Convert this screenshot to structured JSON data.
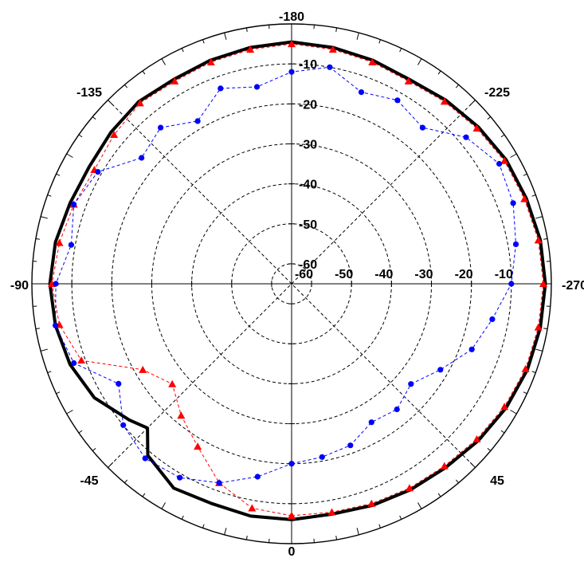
{
  "colors": {
    "series1": "#000000",
    "series2": "#ff0000",
    "series3": "#0000ff",
    "grid": "#000000"
  },
  "chart_data": {
    "type": "line",
    "polar": true,
    "grid": true,
    "angle_ticks": [
      "-180",
      "-225",
      "-270",
      "45",
      "0",
      "-45",
      "-90",
      "-135"
    ],
    "r_ticks": [
      "-60",
      "-50",
      "-40",
      "-30",
      "-20",
      "-10"
    ],
    "rlim": [
      -65,
      0
    ],
    "series": [
      {
        "style": "solid-thick",
        "color": "#000000",
        "points": [
          {
            "angle": 0,
            "r": -6
          },
          {
            "angle": 10,
            "r": -6.5
          },
          {
            "angle": 20,
            "r": -6
          },
          {
            "angle": 30,
            "r": -5.5
          },
          {
            "angle": 40,
            "r": -5
          },
          {
            "angle": 50,
            "r": -4
          },
          {
            "angle": 60,
            "r": -3
          },
          {
            "angle": 70,
            "r": -2.2
          },
          {
            "angle": 80,
            "r": -1.8
          },
          {
            "angle": 90,
            "r": -1.5
          },
          {
            "angle": 100,
            "r": -1.8
          },
          {
            "angle": 110,
            "r": -2.5
          },
          {
            "angle": 120,
            "r": -3
          },
          {
            "angle": 130,
            "r": -4
          },
          {
            "angle": 140,
            "r": -5
          },
          {
            "angle": 150,
            "r": -6
          },
          {
            "angle": 160,
            "r": -5.5
          },
          {
            "angle": 170,
            "r": -5
          },
          {
            "angle": 180,
            "r": -4.5
          },
          {
            "angle": 190,
            "r": -5
          },
          {
            "angle": 200,
            "r": -5.5
          },
          {
            "angle": 210,
            "r": -6
          },
          {
            "angle": 220,
            "r": -5.5
          },
          {
            "angle": 230,
            "r": -6
          },
          {
            "angle": 240,
            "r": -6.5
          },
          {
            "angle": 250,
            "r": -6
          },
          {
            "angle": 260,
            "r": -5
          },
          {
            "angle": 270,
            "r": -4.5
          },
          {
            "angle": 280,
            "r": -5
          },
          {
            "angle": 290,
            "r": -6
          },
          {
            "angle": 300,
            "r": -8
          },
          {
            "angle": 310,
            "r": -12
          },
          {
            "angle": 315,
            "r": -14
          },
          {
            "angle": 320,
            "r": -9
          },
          {
            "angle": 330,
            "r": -6
          },
          {
            "angle": 340,
            "r": -6.5
          },
          {
            "angle": 350,
            "r": -6
          },
          {
            "angle": 360,
            "r": -6
          }
        ]
      },
      {
        "style": "triangle-markers-dashed",
        "color": "#ff0000",
        "points": [
          {
            "angle": 0,
            "r": -7
          },
          {
            "angle": 10,
            "r": -7
          },
          {
            "angle": 20,
            "r": -6.5
          },
          {
            "angle": 30,
            "r": -6
          },
          {
            "angle": 40,
            "r": -5.5
          },
          {
            "angle": 50,
            "r": -4.5
          },
          {
            "angle": 60,
            "r": -3.5
          },
          {
            "angle": 70,
            "r": -2.7
          },
          {
            "angle": 80,
            "r": -2.3
          },
          {
            "angle": 90,
            "r": -2
          },
          {
            "angle": 100,
            "r": -2.3
          },
          {
            "angle": 110,
            "r": -3
          },
          {
            "angle": 120,
            "r": -3.5
          },
          {
            "angle": 130,
            "r": -4.5
          },
          {
            "angle": 140,
            "r": -5.5
          },
          {
            "angle": 150,
            "r": -6.5
          },
          {
            "angle": 160,
            "r": -6
          },
          {
            "angle": 170,
            "r": -5.5
          },
          {
            "angle": 180,
            "r": -5
          },
          {
            "angle": 190,
            "r": -5.5
          },
          {
            "angle": 200,
            "r": -6
          },
          {
            "angle": 210,
            "r": -6.5
          },
          {
            "angle": 220,
            "r": -6
          },
          {
            "angle": 230,
            "r": -7
          },
          {
            "angle": 240,
            "r": -8
          },
          {
            "angle": 250,
            "r": -7
          },
          {
            "angle": 260,
            "r": -6
          },
          {
            "angle": 270,
            "r": -5
          },
          {
            "angle": 280,
            "r": -6
          },
          {
            "angle": 290,
            "r": -9
          },
          {
            "angle": 300,
            "r": -22
          },
          {
            "angle": 310,
            "r": -26
          },
          {
            "angle": 320,
            "r": -22
          },
          {
            "angle": 330,
            "r": -18
          },
          {
            "angle": 340,
            "r": -12
          },
          {
            "angle": 350,
            "r": -8
          },
          {
            "angle": 360,
            "r": -7
          }
        ]
      },
      {
        "style": "circle-markers-dashed",
        "color": "#0000ff",
        "points": [
          {
            "angle": 0,
            "r": -20
          },
          {
            "angle": 10,
            "r": -21
          },
          {
            "angle": 20,
            "r": -22
          },
          {
            "angle": 30,
            "r": -25
          },
          {
            "angle": 40,
            "r": -24
          },
          {
            "angle": 50,
            "r": -26
          },
          {
            "angle": 60,
            "r": -22
          },
          {
            "angle": 70,
            "r": -17
          },
          {
            "angle": 80,
            "r": -14
          },
          {
            "angle": 90,
            "r": -10
          },
          {
            "angle": 100,
            "r": -8
          },
          {
            "angle": 110,
            "r": -6
          },
          {
            "angle": 120,
            "r": -5
          },
          {
            "angle": 130,
            "r": -8
          },
          {
            "angle": 140,
            "r": -14
          },
          {
            "angle": 150,
            "r": -12
          },
          {
            "angle": 160,
            "r": -14
          },
          {
            "angle": 170,
            "r": -10
          },
          {
            "angle": 180,
            "r": -12
          },
          {
            "angle": 190,
            "r": -15
          },
          {
            "angle": 200,
            "r": -13
          },
          {
            "angle": 210,
            "r": -18
          },
          {
            "angle": 220,
            "r": -14
          },
          {
            "angle": 230,
            "r": -16
          },
          {
            "angle": 240,
            "r": -9
          },
          {
            "angle": 250,
            "r": -7
          },
          {
            "angle": 260,
            "r": -9
          },
          {
            "angle": 270,
            "r": -6
          },
          {
            "angle": 280,
            "r": -5
          },
          {
            "angle": 290,
            "r": -7
          },
          {
            "angle": 300,
            "r": -15
          },
          {
            "angle": 310,
            "r": -10
          },
          {
            "angle": 320,
            "r": -8
          },
          {
            "angle": 330,
            "r": -9
          },
          {
            "angle": 340,
            "r": -12
          },
          {
            "angle": 350,
            "r": -16
          },
          {
            "angle": 360,
            "r": -20
          }
        ]
      }
    ]
  }
}
